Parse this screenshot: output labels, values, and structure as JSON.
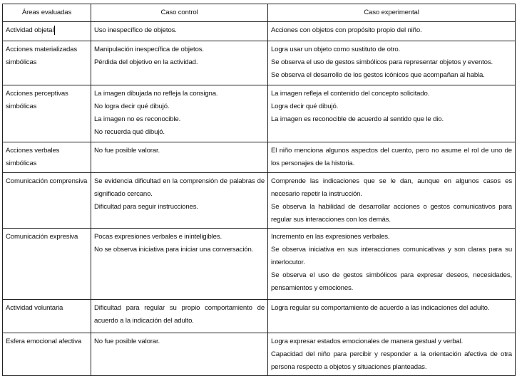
{
  "headers": [
    "Áreas evaluadas",
    "Caso control",
    "Caso experimental"
  ],
  "rows": [
    {
      "area": "Actividad objetal",
      "control": [
        "Uso inespecífico de objetos."
      ],
      "experimental": [
        "Acciones con objetos con propósito propio del niño."
      ]
    },
    {
      "area": "Acciones materializadas simbólicas",
      "control": [
        "Manipulación inespecífica de objetos.",
        "Pérdida del objetivo en la actividad."
      ],
      "experimental": [
        "Logra usar un objeto como sustituto de otro.",
        "Se observa el uso de gestos simbólicos para representar objetos y eventos.",
        "Se observa el desarrollo de los gestos icónicos que acompañan al habla."
      ]
    },
    {
      "area": "Acciones perceptivas simbólicas",
      "control": [
        "La imagen dibujada no refleja la consigna.",
        "No logra decir qué dibujó.",
        "La imagen no es reconocible.",
        "No recuerda qué dibujó."
      ],
      "experimental": [
        "La imagen refleja el contenido del concepto solicitado.",
        "Logra decir qué dibujó.",
        "La imagen es reconocible de acuerdo al sentido que le dio."
      ]
    },
    {
      "area": "Acciones verbales simbólicas",
      "control": [
        "No fue posible valorar."
      ],
      "experimental": [
        "El niño menciona algunos aspectos del cuento, pero no asume el rol de uno de los personajes de la historia."
      ]
    },
    {
      "area": "Comunicación comprensiva",
      "control": [
        "Se evidencia dificultad en la comprensión de palabras de significado cercano.",
        "Dificultad para seguir instrucciones."
      ],
      "experimental": [
        "Comprende las indicaciones que se le dan, aunque en algunos casos es necesario repetir la instrucción.",
        "Se observa la habilidad de desarrollar acciones o gestos comunicativos para regular sus interacciones con los demás."
      ]
    },
    {
      "area": "Comunicación expresiva",
      "control": [
        "Pocas expresiones verbales e ininteligibles.",
        "No se observa iniciativa para iniciar una conversación."
      ],
      "experimental": [
        "Incremento en las expresiones verbales.",
        "Se observa iniciativa en sus interacciones comunicativas y son claras para su interlocutor.",
        "Se observa el uso de gestos simbólicos para expresar deseos, necesidades, pensamientos y emociones."
      ]
    },
    {
      "area": "Actividad voluntaria",
      "control": [
        "Dificultad para regular su propio comportamiento de acuerdo a la indicación del adulto."
      ],
      "experimental": [
        "Logra regular su comportamiento de acuerdo a las indicaciones del adulto."
      ]
    },
    {
      "area": "Esfera emocional afectiva",
      "control": [
        "No fue posible valorar."
      ],
      "experimental": [
        "Logra expresar estados emocionales de manera gestual y verbal.",
        "Capacidad del niño para percibir y responder a la orientación afectiva de otra persona respecto a objetos y situaciones planteadas."
      ]
    }
  ]
}
